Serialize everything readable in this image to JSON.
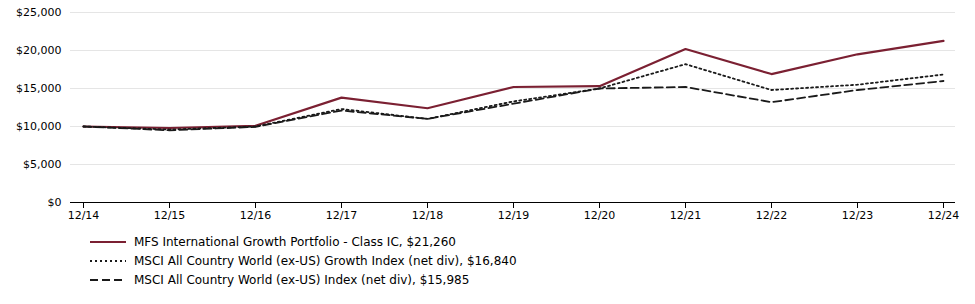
{
  "chart_data": {
    "type": "line",
    "categories": [
      "12/14",
      "12/15",
      "12/16",
      "12/17",
      "12/18",
      "12/19",
      "12/20",
      "12/21",
      "12/22",
      "12/23",
      "12/24"
    ],
    "series": [
      {
        "name": "MFS International Growth Portfolio - Class IC, $21,260",
        "color": "#7B2032",
        "line_style": "solid",
        "values": [
          10000,
          9800,
          10100,
          13800,
          12400,
          15200,
          15300,
          20200,
          16900,
          19500,
          21260
        ]
      },
      {
        "name": "MSCI All Country World (ex-US) Growth Index (net div), $16,840",
        "color": "#1a1a1a",
        "line_style": "dotted",
        "values": [
          10000,
          9600,
          10000,
          12300,
          11000,
          13300,
          15000,
          18200,
          14800,
          15500,
          16840
        ]
      },
      {
        "name": "MSCI All Country World (ex-US) Index (net div), $15,985",
        "color": "#1a1a1a",
        "line_style": "dashed",
        "values": [
          10000,
          9500,
          9950,
          12100,
          11000,
          13000,
          15000,
          15200,
          13200,
          14800,
          15985
        ]
      }
    ],
    "ylim": [
      0,
      25000
    ],
    "yticks": [
      {
        "value": 0,
        "label": "$0"
      },
      {
        "value": 5000,
        "label": "$5,000"
      },
      {
        "value": 10000,
        "label": "$10,000"
      },
      {
        "value": 15000,
        "label": "$15,000"
      },
      {
        "value": 20000,
        "label": "$20,000"
      },
      {
        "value": 25000,
        "label": "$25,000"
      }
    ],
    "grid": true,
    "legend": "bottom"
  }
}
